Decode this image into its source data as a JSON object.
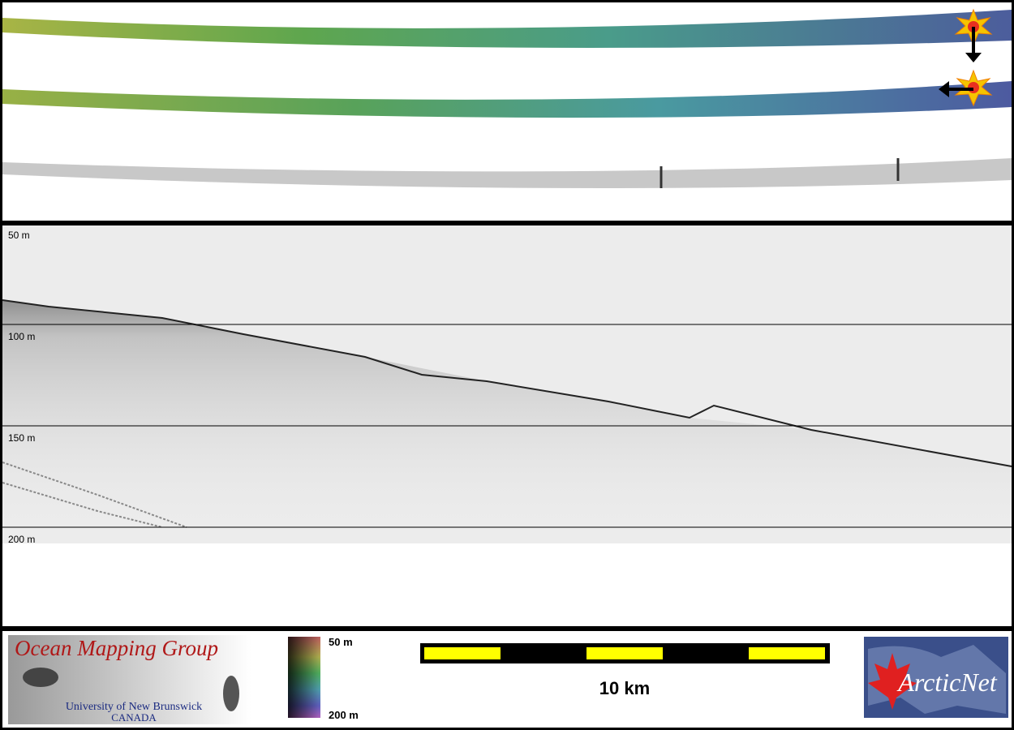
{
  "echogram": {
    "depth_labels": [
      "50 m",
      "100 m",
      "150 m",
      "200 m"
    ]
  },
  "legend": {
    "colorbar": {
      "top_label": "50 m",
      "bottom_label": "200 m"
    },
    "scale_bar": {
      "label": "10 km"
    }
  },
  "logos": {
    "ocean_mapping_group": {
      "title": "Ocean Mapping Group",
      "university": "University of New Brunswick",
      "country": "CANADA"
    },
    "arcticnet": {
      "title": "ArcticNet"
    }
  }
}
